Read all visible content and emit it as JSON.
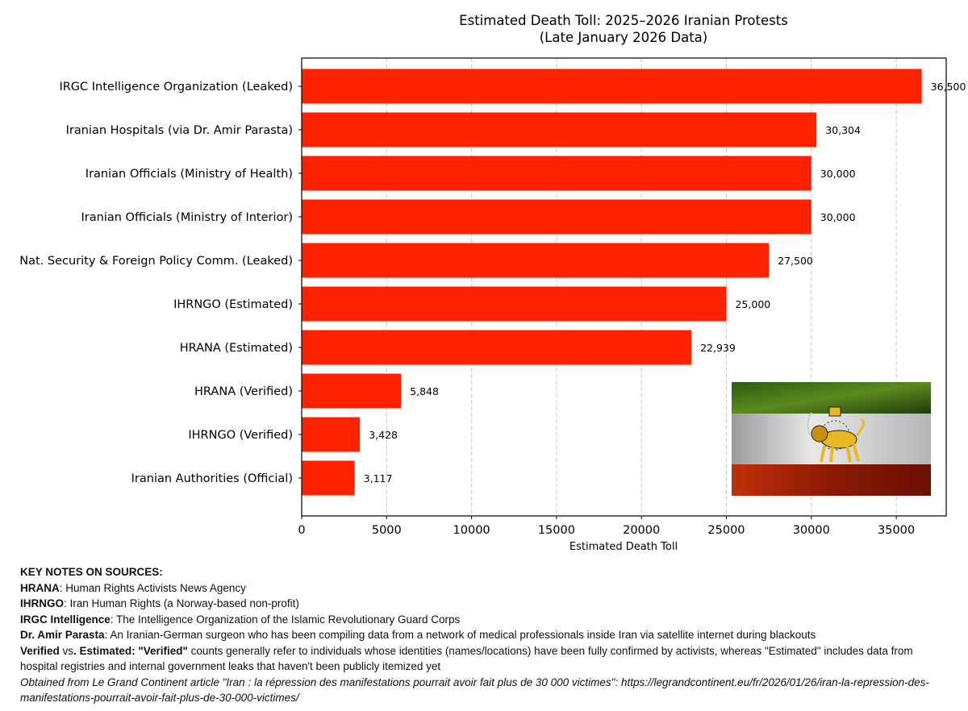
{
  "chart_data": {
    "type": "bar",
    "orientation": "horizontal",
    "title": "Estimated Death Toll: 2025–2026 Iranian Protests",
    "subtitle": "(Late January 2026 Data)",
    "xlabel": "Estimated Death Toll",
    "ylabel": "",
    "xlim": [
      0,
      37940
    ],
    "xticks": [
      0,
      5000,
      10000,
      15000,
      20000,
      25000,
      30000,
      35000
    ],
    "grid": "vertical dashed",
    "bar_color": "#ff2200",
    "categories": [
      "IRGC Intelligence Organization (Leaked)",
      "Iranian Hospitals (via Dr. Amir Parasta)",
      "Iranian Officials (Ministry of Health)",
      "Iranian Officials (Ministry of Interior)",
      "Nat. Security & Foreign Policy Comm. (Leaked)",
      "IHRNGO (Estimated)",
      "HRANA (Estimated)",
      "HRANA (Verified)",
      "IHRNGO (Verified)",
      "Iranian Authorities (Official)"
    ],
    "values": [
      36500,
      30304,
      30000,
      30000,
      27500,
      25000,
      22939,
      5848,
      3428,
      3117
    ],
    "data_labels": [
      "36,500",
      "30,304",
      "30,000",
      "30,000",
      "27,500",
      "25,000",
      "22,939",
      "5,848",
      "3,428",
      "3,117"
    ],
    "inset_image": "lion-and-sun-flag"
  },
  "notes": {
    "heading": "KEY NOTES ON SOURCES:",
    "items": [
      {
        "term": "HRANA",
        "sep": ": ",
        "text": "Human Rights Activists News Agency"
      },
      {
        "term": "IHRNGO",
        "sep": ": ",
        "text": "Iran Human Rights (a Norway-based non-profit)"
      },
      {
        "term": "IRGC Intelligence",
        "sep": ": ",
        "text": "The Intelligence Organization of the Islamic Revolutionary Guard Corps"
      },
      {
        "term": "Dr. Amir Parasta",
        "sep": ": ",
        "text": "An Iranian-German surgeon who has been compiling data from a network of medical professionals inside Iran via satellite internet during blackouts"
      }
    ],
    "verified_term": "Verified",
    "vs": " vs",
    "estimated_term": ". Estimated: \"Verified\"",
    "verified_text": " counts generally refer to individuals whose identities (names/locations) have been fully confirmed by activists, whereas \"Estimated\" includes data from hospital registries and internal government leaks that haven't been publicly itemized yet",
    "source": "Obtained from Le Grand Continent article \"Iran : la répression des manifestations pourrait avoir fait plus de 30 000 victimes\": https://legrandcontinent.eu/fr/2026/01/26/iran-la-repression-des-manifestations-pourrait-avoir-fait-plus-de-30-000-victimes/"
  }
}
